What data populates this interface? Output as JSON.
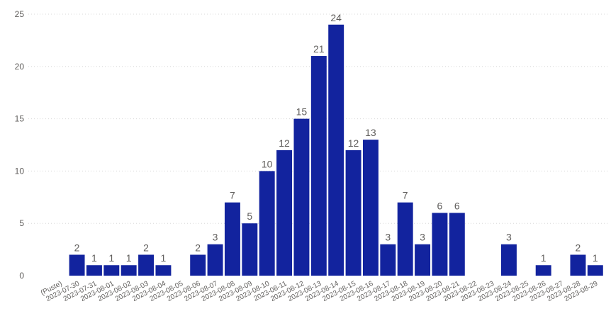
{
  "chart_data": {
    "type": "bar",
    "title": "",
    "xlabel": "",
    "ylabel": "",
    "ylim": [
      0,
      25
    ],
    "y_ticks": [
      "0",
      "5",
      "10",
      "15",
      "20",
      "25"
    ],
    "grid": "horizontal-dotted",
    "legend": "none",
    "categories": [
      "(Puste)",
      "2023-07-30",
      "2023-07-31",
      "2023-08-01",
      "2023-08-02",
      "2023-08-03",
      "2023-08-04",
      "2023-08-05",
      "2023-08-06",
      "2023-08-07",
      "2023-08-08",
      "2023-08-09",
      "2023-08-10",
      "2023-08-11",
      "2023-08-12",
      "2023-08-13",
      "2023-08-14",
      "2023-08-15",
      "2023-08-16",
      "2023-08-17",
      "2023-08-18",
      "2023-08-19",
      "2023-08-20",
      "2023-08-21",
      "2023-08-22",
      "2023-08-23",
      "2023-08-24",
      "2023-08-25",
      "2023-08-26",
      "2023-08-27",
      "2023-08-28",
      "2023-08-29"
    ],
    "values": [
      null,
      2,
      1,
      1,
      1,
      2,
      1,
      null,
      2,
      3,
      7,
      5,
      10,
      12,
      15,
      21,
      24,
      12,
      13,
      3,
      7,
      3,
      6,
      6,
      null,
      null,
      3,
      null,
      1,
      null,
      2,
      1
    ],
    "colors": {
      "bar": "#12239E",
      "gridline": "#d8d8d8",
      "text": "#605E5C"
    }
  }
}
